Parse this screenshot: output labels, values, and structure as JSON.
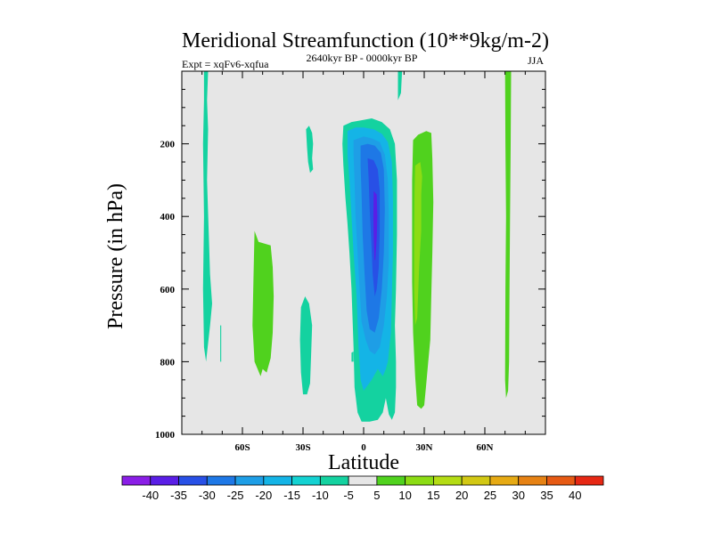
{
  "chart_data": {
    "type": "contour",
    "title": "Meridional Streamfunction (10**9kg/m-2)",
    "subtitle_left": "Expt = xqFv6-xqfua",
    "subtitle_center": "2640kyr BP - 0000kyr BP",
    "subtitle_right": "JJA",
    "xlabel": "Latitude",
    "ylabel": "Pressure (in hPa)",
    "x_range": [
      -90,
      90
    ],
    "y_range": [
      0,
      1000
    ],
    "y_inverted": true,
    "x_ticks": [
      {
        "value": -60,
        "label": "60S"
      },
      {
        "value": -30,
        "label": "30S"
      },
      {
        "value": 0,
        "label": "0"
      },
      {
        "value": 30,
        "label": "30N"
      },
      {
        "value": 60,
        "label": "60N"
      }
    ],
    "y_ticks": [
      {
        "value": 200,
        "label": "200"
      },
      {
        "value": 400,
        "label": "400"
      },
      {
        "value": 600,
        "label": "600"
      },
      {
        "value": 800,
        "label": "800"
      },
      {
        "value": 1000,
        "label": "1000"
      }
    ],
    "background_fill": "#e6e6e6",
    "contour_levels": [
      -40,
      -35,
      -30,
      -25,
      -20,
      -15,
      -10,
      -5,
      5,
      10,
      15,
      20,
      25,
      30,
      35,
      40
    ],
    "colorbar": {
      "labels": [
        "-40",
        "-35",
        "-30",
        "-25",
        "-20",
        "-15",
        "-10",
        "-5",
        "5",
        "10",
        "15",
        "20",
        "25",
        "30",
        "35",
        "40"
      ],
      "colors": [
        "#8a1ee6",
        "#5a1ee6",
        "#2850e6",
        "#1e78e6",
        "#1e9ee6",
        "#14b4e6",
        "#14d2d2",
        "#14d2a0",
        "#e6e6e6",
        "#50d21e",
        "#8cdc14",
        "#b4dc14",
        "#d2c814",
        "#e6aa14",
        "#e68214",
        "#e65a14",
        "#e62814"
      ]
    },
    "regions": [
      {
        "name": "cyan-strip-75S",
        "value": -7,
        "color": "#14d2a0",
        "points": [
          [
            -79,
            0
          ],
          [
            -77,
            0
          ],
          [
            -77.5,
            80
          ],
          [
            -77,
            160
          ],
          [
            -77.5,
            300
          ],
          [
            -76,
            560
          ],
          [
            -75,
            640
          ],
          [
            -76,
            700
          ],
          [
            -78,
            800
          ],
          [
            -79,
            760
          ],
          [
            -79.5,
            600
          ],
          [
            -79,
            400
          ],
          [
            -79.5,
            200
          ],
          [
            -79,
            80
          ]
        ]
      },
      {
        "name": "cyan-fleck-70S",
        "value": -6,
        "color": "#14d2a0",
        "points": [
          [
            -71,
            700
          ],
          [
            -70.5,
            700
          ],
          [
            -70.5,
            800
          ],
          [
            -71,
            800
          ]
        ]
      },
      {
        "name": "green-blob-50S",
        "value": 8,
        "color": "#50d21e",
        "points": [
          [
            -54,
            440
          ],
          [
            -52,
            470
          ],
          [
            -46,
            480
          ],
          [
            -45,
            540
          ],
          [
            -44.5,
            620
          ],
          [
            -45,
            720
          ],
          [
            -46,
            790
          ],
          [
            -48,
            830
          ],
          [
            -50,
            820
          ],
          [
            -51,
            840
          ],
          [
            -54,
            800
          ],
          [
            -55,
            700
          ],
          [
            -54.5,
            560
          ]
        ]
      },
      {
        "name": "cyan-streak-27S-upper",
        "value": -7,
        "color": "#14d2a0",
        "points": [
          [
            -28.5,
            160
          ],
          [
            -27,
            150
          ],
          [
            -25.5,
            170
          ],
          [
            -25,
            200
          ],
          [
            -25.5,
            240
          ],
          [
            -25,
            270
          ],
          [
            -26.5,
            280
          ],
          [
            -27.5,
            250
          ],
          [
            -28,
            210
          ]
        ]
      },
      {
        "name": "cyan-blob-30S-lower",
        "value": -7,
        "color": "#14d2a0",
        "points": [
          [
            -31,
            650
          ],
          [
            -29,
            620
          ],
          [
            -27,
            640
          ],
          [
            -25.5,
            700
          ],
          [
            -26,
            780
          ],
          [
            -26.5,
            860
          ],
          [
            -28,
            890
          ],
          [
            -30,
            890
          ],
          [
            -31,
            830
          ],
          [
            -31.5,
            740
          ]
        ]
      },
      {
        "name": "cyan-dot-5S",
        "value": -6,
        "color": "#14d2a0",
        "points": [
          [
            -6,
            775
          ],
          [
            -5,
            772
          ],
          [
            -5,
            800
          ],
          [
            -6,
            800
          ]
        ]
      },
      {
        "name": "tropical-cell-5",
        "value": -7,
        "color": "#14d2a0",
        "points": [
          [
            -10,
            150
          ],
          [
            -6,
            140
          ],
          [
            -1,
            135
          ],
          [
            4,
            130
          ],
          [
            9,
            140
          ],
          [
            13,
            160
          ],
          [
            15.5,
            200
          ],
          [
            16.5,
            300
          ],
          [
            16.5,
            450
          ],
          [
            16,
            600
          ],
          [
            15.5,
            700
          ],
          [
            16,
            800
          ],
          [
            16,
            870
          ],
          [
            15.5,
            940
          ],
          [
            14,
            960
          ],
          [
            12.5,
            945
          ],
          [
            11,
            900
          ],
          [
            9.5,
            940
          ],
          [
            7,
            960
          ],
          [
            3,
            965
          ],
          [
            -1,
            965
          ],
          [
            -3,
            940
          ],
          [
            -4.5,
            870
          ],
          [
            -5,
            760
          ],
          [
            -6,
            600
          ],
          [
            -7,
            500
          ],
          [
            -8,
            420
          ],
          [
            -9,
            350
          ],
          [
            -10,
            260
          ],
          [
            -10.5,
            200
          ]
        ]
      },
      {
        "name": "tropical-cell-10",
        "value": -12,
        "color": "#14b4e6",
        "points": [
          [
            -8,
            165
          ],
          [
            -4,
            155
          ],
          [
            0,
            155
          ],
          [
            5,
            160
          ],
          [
            9,
            172
          ],
          [
            12,
            195
          ],
          [
            14,
            250
          ],
          [
            14.5,
            350
          ],
          [
            14.5,
            500
          ],
          [
            14,
            620
          ],
          [
            13.5,
            720
          ],
          [
            12,
            800
          ],
          [
            11,
            820
          ],
          [
            9.5,
            840
          ],
          [
            7,
            820
          ],
          [
            4,
            850
          ],
          [
            0,
            880
          ],
          [
            -1.5,
            850
          ],
          [
            -2.5,
            760
          ],
          [
            -3.5,
            620
          ],
          [
            -5,
            500
          ],
          [
            -6,
            400
          ],
          [
            -7,
            300
          ],
          [
            -8,
            230
          ]
        ]
      },
      {
        "name": "tropical-cell-15",
        "value": -17,
        "color": "#1e9ee6",
        "points": [
          [
            -5,
            190
          ],
          [
            0,
            180
          ],
          [
            4,
            185
          ],
          [
            8,
            195
          ],
          [
            10.5,
            230
          ],
          [
            12,
            300
          ],
          [
            12.5,
            400
          ],
          [
            12.5,
            520
          ],
          [
            11.5,
            620
          ],
          [
            10,
            700
          ],
          [
            8,
            760
          ],
          [
            5.5,
            780
          ],
          [
            3,
            770
          ],
          [
            1,
            740
          ],
          [
            -1,
            690
          ],
          [
            -2,
            600
          ],
          [
            -3,
            500
          ],
          [
            -4,
            400
          ],
          [
            -4.5,
            300
          ],
          [
            -5,
            230
          ]
        ]
      },
      {
        "name": "tropical-cell-20",
        "value": -22,
        "color": "#1e78e6",
        "points": [
          [
            -1.5,
            205
          ],
          [
            2,
            200
          ],
          [
            5.5,
            205
          ],
          [
            8.5,
            225
          ],
          [
            10,
            270
          ],
          [
            10.5,
            380
          ],
          [
            10,
            500
          ],
          [
            9,
            600
          ],
          [
            7.5,
            680
          ],
          [
            5.5,
            720
          ],
          [
            3,
            710
          ],
          [
            1.5,
            660
          ],
          [
            0.5,
            560
          ],
          [
            -0.5,
            450
          ],
          [
            -1,
            340
          ],
          [
            -1.5,
            260
          ]
        ]
      },
      {
        "name": "tropical-cell-25",
        "value": -27,
        "color": "#2850e6",
        "points": [
          [
            2,
            240
          ],
          [
            5,
            245
          ],
          [
            7,
            270
          ],
          [
            8,
            330
          ],
          [
            8,
            440
          ],
          [
            7.5,
            540
          ],
          [
            6.5,
            600
          ],
          [
            5.5,
            620
          ],
          [
            4.5,
            560
          ],
          [
            3.8,
            470
          ],
          [
            3,
            380
          ],
          [
            2.5,
            300
          ]
        ]
      },
      {
        "name": "tropical-cell-30",
        "value": -32,
        "color": "#5a1ee6",
        "points": [
          [
            5,
            330
          ],
          [
            6.5,
            340
          ],
          [
            6.8,
            400
          ],
          [
            6.5,
            460
          ],
          [
            5.8,
            520
          ],
          [
            5.4,
            520
          ],
          [
            5,
            460
          ],
          [
            4.8,
            400
          ]
        ]
      },
      {
        "name": "cyan-strip-18N",
        "value": -7,
        "color": "#14d2a0",
        "points": [
          [
            17,
            0
          ],
          [
            19,
            0
          ],
          [
            18.5,
            60
          ],
          [
            17,
            80
          ]
        ]
      },
      {
        "name": "green-cell-30N",
        "value": 8,
        "color": "#50d21e",
        "points": [
          [
            24.5,
            190
          ],
          [
            27,
            175
          ],
          [
            31,
            165
          ],
          [
            33.5,
            170
          ],
          [
            34,
            240
          ],
          [
            34.5,
            360
          ],
          [
            34,
            500
          ],
          [
            33.5,
            620
          ],
          [
            33,
            740
          ],
          [
            32,
            800
          ],
          [
            31,
            860
          ],
          [
            30,
            920
          ],
          [
            28.5,
            930
          ],
          [
            26.5,
            920
          ],
          [
            25.5,
            840
          ],
          [
            24.5,
            720
          ],
          [
            24,
            580
          ],
          [
            24,
            420
          ],
          [
            24,
            300
          ]
        ]
      },
      {
        "name": "green-cell-30N-inner",
        "value": 12,
        "color": "#8cdc14",
        "points": [
          [
            25.5,
            260
          ],
          [
            28,
            250
          ],
          [
            29,
            290
          ],
          [
            28.5,
            340
          ],
          [
            28.5,
            440
          ],
          [
            27.5,
            540
          ],
          [
            27,
            610
          ],
          [
            26.5,
            680
          ],
          [
            25.5,
            700
          ],
          [
            25,
            600
          ],
          [
            25,
            450
          ],
          [
            25.2,
            330
          ]
        ]
      },
      {
        "name": "green-strip-70N",
        "value": 7,
        "color": "#50d21e",
        "points": [
          [
            70,
            0
          ],
          [
            73,
            0
          ],
          [
            72.8,
            200
          ],
          [
            72.5,
            400
          ],
          [
            72.2,
            600
          ],
          [
            72,
            800
          ],
          [
            71.5,
            880
          ],
          [
            70.5,
            900
          ],
          [
            70,
            850
          ],
          [
            70.2,
            600
          ],
          [
            70.5,
            400
          ],
          [
            70.2,
            200
          ]
        ]
      }
    ]
  }
}
